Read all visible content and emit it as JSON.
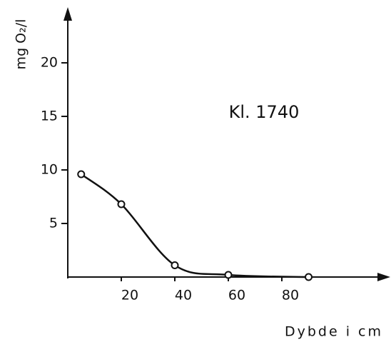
{
  "chart_data": {
    "type": "line",
    "annotation": "Kl. 1740",
    "x_label": "Dybde i cm",
    "y_label": "mg O₂/l",
    "x": [
      5,
      20,
      40,
      60,
      90
    ],
    "series": [
      {
        "color": "#111111",
        "values": [
          9.6,
          6.8,
          1.1,
          0.2,
          0
        ]
      }
    ],
    "xlim": [
      0,
      120
    ],
    "xticks": [
      20,
      40,
      60,
      80
    ],
    "ylim": [
      0,
      25
    ],
    "yticks": [
      5,
      10,
      15,
      20
    ],
    "grid": false,
    "smooth": true,
    "markers": "open-circle"
  }
}
